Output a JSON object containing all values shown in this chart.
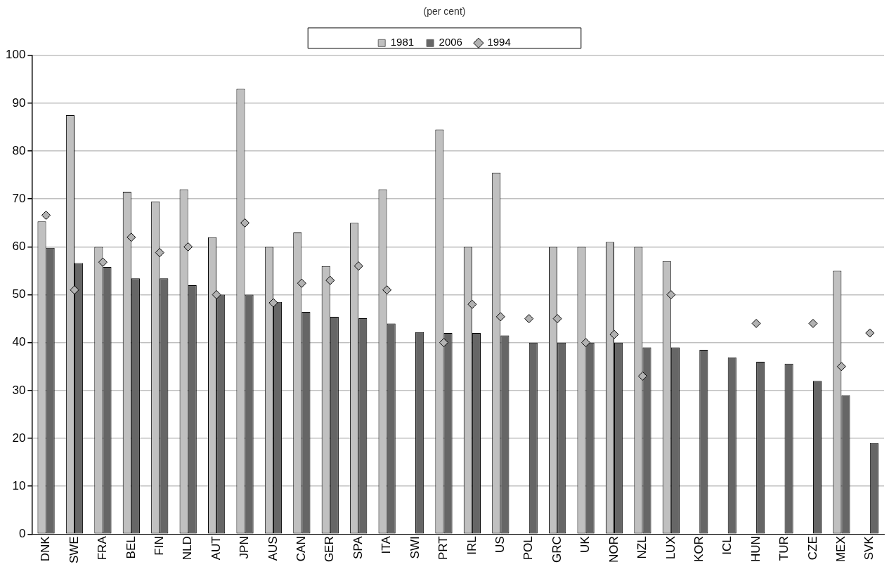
{
  "chart_data": {
    "type": "bar",
    "title": "(per cent)",
    "categories": [
      "DNK",
      "SWE",
      "FRA",
      "BEL",
      "FIN",
      "NLD",
      "AUT",
      "JPN",
      "AUS",
      "CAN",
      "GER",
      "SPA",
      "ITA",
      "SWI",
      "PRT",
      "IRL",
      "US",
      "POL",
      "GRC",
      "UK",
      "NOR",
      "NZL",
      "LUX",
      "KOR",
      "ICL",
      "HUN",
      "TUR",
      "CZE",
      "MEX",
      "SVK"
    ],
    "series": [
      {
        "name": "1981",
        "color": "#c0c0c0",
        "values": [
          65.3,
          87.5,
          60,
          71.5,
          69.5,
          72,
          62,
          93,
          60,
          63,
          56,
          65,
          72,
          null,
          84.5,
          60,
          75.5,
          null,
          60,
          60,
          61,
          60,
          57,
          null,
          null,
          null,
          null,
          null,
          55,
          null
        ]
      },
      {
        "name": "2006",
        "color": "#666666",
        "values": [
          59.8,
          56.6,
          55.8,
          53.4,
          53.4,
          52,
          50,
          50,
          48.5,
          46.4,
          45.4,
          45.1,
          44,
          42.2,
          42,
          42,
          41.5,
          40,
          40,
          40,
          40,
          39,
          39,
          38.5,
          36.9,
          36,
          35.6,
          32,
          29,
          19
        ]
      },
      {
        "name": "1994",
        "type": "scatter",
        "color": "#b2b2b2",
        "values": [
          66.6,
          51,
          56.8,
          62,
          58.8,
          60,
          50,
          65,
          48.3,
          52.4,
          53,
          56,
          51,
          null,
          40,
          48,
          45.4,
          45,
          45,
          40,
          41.7,
          33,
          50,
          null,
          null,
          44,
          null,
          44,
          35,
          42
        ]
      }
    ],
    "ylim": [
      0,
      100
    ],
    "yticks": [
      0,
      10,
      20,
      30,
      40,
      50,
      60,
      70,
      80,
      90,
      100
    ],
    "grid": "y",
    "legend": "top",
    "marker": "diamond"
  }
}
